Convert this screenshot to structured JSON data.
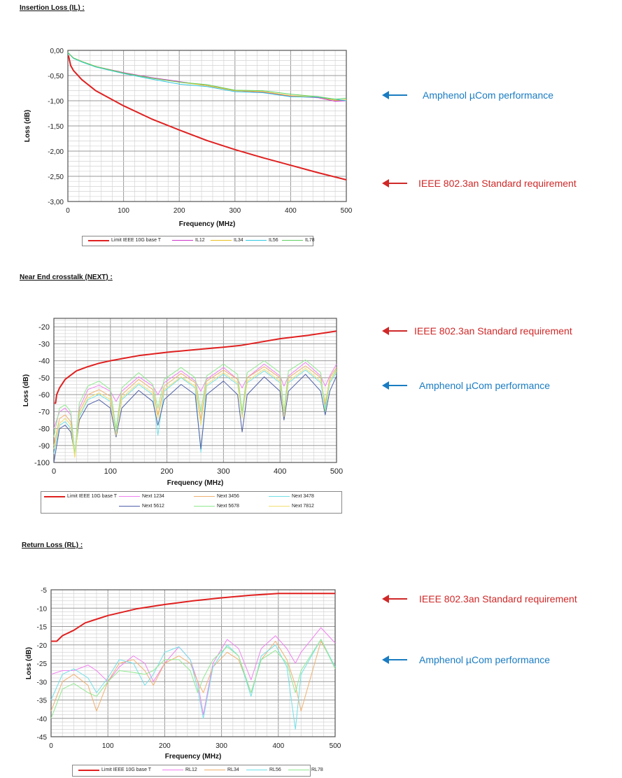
{
  "colors": {
    "limit": "#e02020",
    "blue_text": "#1a7cc2",
    "red_text": "#d02828"
  },
  "sections": [
    {
      "title": "Insertion Loss (IL) :",
      "annotations": [
        {
          "text": "Amphenol µCom performance",
          "color": "#1a7cc2"
        },
        {
          "text": "IEEE 802.3an Standard requirement",
          "color": "#d02828"
        }
      ]
    },
    {
      "title": "Near End crosstalk (NEXT) :",
      "annotations": [
        {
          "text": "IEEE 802.3an Standard requirement",
          "color": "#d02828"
        },
        {
          "text": "Amphenol µCom performance",
          "color": "#1a7cc2"
        }
      ]
    },
    {
      "title": "Return Loss (RL) :",
      "annotations": [
        {
          "text": "IEEE 802.3an Standard requirement",
          "color": "#d02828"
        },
        {
          "text": "Amphenol µCom performance",
          "color": "#1a7cc2"
        }
      ]
    }
  ],
  "chart_data": [
    {
      "type": "line",
      "xlabel": "Frequency (MHz)",
      "ylabel": "Loss (dB)",
      "xlim": [
        0,
        500
      ],
      "ylim": [
        -3,
        0
      ],
      "xticks": [
        "0",
        "100",
        "200",
        "300",
        "400",
        "500"
      ],
      "yticks": [
        "0,00",
        "-0,50",
        "-1,00",
        "-1,50",
        "-2,00",
        "-2,50",
        "-3,00"
      ],
      "grid": true,
      "legend": "bottom",
      "series": [
        {
          "name": "Limit IEEE 10G base T",
          "color": "#e02020",
          "x": [
            1,
            5,
            10,
            25,
            50,
            100,
            150,
            200,
            250,
            300,
            350,
            400,
            450,
            500
          ],
          "y": [
            -0.1,
            -0.3,
            -0.4,
            -0.58,
            -0.8,
            -1.1,
            -1.36,
            -1.58,
            -1.79,
            -1.97,
            -2.13,
            -2.28,
            -2.43,
            -2.57
          ]
        },
        {
          "name": "IL12",
          "color": "#cc33cc",
          "x": [
            0,
            10,
            25,
            50,
            100,
            150,
            200,
            250,
            300,
            350,
            400,
            450,
            480,
            500
          ],
          "y": [
            -0.05,
            -0.15,
            -0.22,
            -0.32,
            -0.44,
            -0.54,
            -0.62,
            -0.7,
            -0.8,
            -0.83,
            -0.91,
            -0.94,
            -1.01,
            -1.0
          ]
        },
        {
          "name": "IL34",
          "color": "#e8c020",
          "x": [
            0,
            10,
            25,
            50,
            100,
            150,
            200,
            250,
            300,
            350,
            400,
            450,
            480,
            500
          ],
          "y": [
            -0.05,
            -0.15,
            -0.22,
            -0.32,
            -0.45,
            -0.55,
            -0.63,
            -0.7,
            -0.8,
            -0.82,
            -0.9,
            -0.93,
            -0.99,
            -0.98
          ]
        },
        {
          "name": "IL56",
          "color": "#30c8e0",
          "x": [
            0,
            10,
            25,
            50,
            100,
            150,
            200,
            250,
            300,
            350,
            400,
            450,
            480,
            500
          ],
          "y": [
            -0.05,
            -0.16,
            -0.23,
            -0.33,
            -0.46,
            -0.57,
            -0.67,
            -0.72,
            -0.82,
            -0.84,
            -0.92,
            -0.93,
            -0.97,
            -1.0
          ]
        },
        {
          "name": "IL78",
          "color": "#60d060",
          "x": [
            0,
            10,
            25,
            50,
            100,
            150,
            200,
            250,
            300,
            350,
            400,
            450,
            480,
            500
          ],
          "y": [
            -0.04,
            -0.15,
            -0.22,
            -0.32,
            -0.45,
            -0.55,
            -0.63,
            -0.68,
            -0.79,
            -0.8,
            -0.87,
            -0.92,
            -0.97,
            -0.95
          ]
        }
      ]
    },
    {
      "type": "line",
      "xlabel": "Frequency (MHz)",
      "ylabel": "Loss (dB)",
      "xlim": [
        0,
        500
      ],
      "ylim": [
        -100,
        -15
      ],
      "xticks": [
        "0",
        "100",
        "200",
        "300",
        "400",
        "500"
      ],
      "yticks": [
        "-20",
        "-30",
        "-40",
        "-50",
        "-60",
        "-70",
        "-80",
        "-90",
        "-100"
      ],
      "grid": true,
      "legend": "bottom",
      "series": [
        {
          "name": "Limit IEEE 10G base T",
          "color": "#e02020",
          "x": [
            1,
            3,
            5,
            10,
            20,
            40,
            60,
            80,
            100,
            150,
            200,
            250,
            300,
            330,
            400,
            450,
            500
          ],
          "y": [
            -65,
            -65,
            -60,
            -56,
            -51,
            -46,
            -43.5,
            -41.5,
            -40,
            -37,
            -35,
            -33.5,
            -32,
            -31,
            -27,
            -25,
            -22.5
          ]
        },
        {
          "name": "Next 1234",
          "color": "#f080f0",
          "x": [
            0,
            10,
            20,
            30,
            37,
            45,
            60,
            80,
            100,
            110,
            120,
            150,
            175,
            184,
            195,
            225,
            250,
            260,
            270,
            300,
            325,
            333,
            342,
            372,
            400,
            407,
            415,
            445,
            472,
            480,
            488,
            500
          ],
          "y": [
            -80,
            -70,
            -68,
            -72,
            -96,
            -68,
            -57,
            -54.5,
            -58,
            -64,
            -58,
            -49.5,
            -55,
            -60,
            -53,
            -46,
            -52,
            -58,
            -51,
            -44,
            -51,
            -56,
            -50,
            -42,
            -49,
            -55,
            -49,
            -41,
            -49,
            -55,
            -49,
            -42
          ]
        },
        {
          "name": "Next 3456",
          "color": "#f0b070",
          "x": [
            0,
            10,
            20,
            30,
            37,
            45,
            60,
            80,
            100,
            110,
            120,
            150,
            175,
            184,
            195,
            225,
            250,
            260,
            270,
            300,
            325,
            333,
            342,
            372,
            400,
            407,
            415,
            445,
            472,
            480,
            488,
            500
          ],
          "y": [
            -90,
            -74,
            -72,
            -76,
            -97,
            -70,
            -60,
            -57,
            -61,
            -83,
            -60,
            -51,
            -57,
            -72,
            -55,
            -47.5,
            -53,
            -75,
            -52,
            -45.5,
            -51,
            -72,
            -50,
            -43.5,
            -50,
            -72,
            -50,
            -43,
            -50,
            -66,
            -50,
            -44
          ]
        },
        {
          "name": "Next 3478",
          "color": "#70e0e8",
          "x": [
            0,
            10,
            20,
            30,
            37,
            45,
            60,
            80,
            100,
            110,
            120,
            150,
            175,
            184,
            195,
            225,
            250,
            260,
            270,
            300,
            325,
            333,
            342,
            372,
            400,
            407,
            415,
            445,
            472,
            480,
            488,
            500
          ],
          "y": [
            -95,
            -78,
            -76,
            -80,
            -96,
            -73,
            -63,
            -60,
            -64,
            -82,
            -63,
            -54,
            -60,
            -84,
            -58,
            -50,
            -56,
            -94,
            -55,
            -48,
            -54,
            -72,
            -53,
            -46,
            -53,
            -72,
            -53,
            -45.5,
            -53,
            -68,
            -53,
            -47
          ]
        },
        {
          "name": "Next 5612",
          "color": "#5060a8",
          "x": [
            0,
            10,
            20,
            30,
            37,
            45,
            60,
            80,
            100,
            110,
            120,
            150,
            175,
            184,
            195,
            225,
            250,
            260,
            270,
            300,
            325,
            333,
            342,
            372,
            400,
            407,
            415,
            445,
            472,
            480,
            488,
            500
          ],
          "y": [
            -100,
            -80,
            -78,
            -82,
            -95,
            -75,
            -66,
            -63,
            -68,
            -85,
            -68,
            -57.5,
            -64,
            -78,
            -63,
            -54,
            -60,
            -92,
            -60,
            -52,
            -60,
            -82,
            -60,
            -49.5,
            -58,
            -75,
            -58,
            -48,
            -58,
            -72,
            -58,
            -49
          ]
        },
        {
          "name": "Next 5678",
          "color": "#90e890",
          "x": [
            0,
            10,
            20,
            30,
            37,
            45,
            60,
            80,
            100,
            110,
            120,
            150,
            175,
            184,
            195,
            225,
            250,
            260,
            270,
            300,
            325,
            333,
            342,
            372,
            400,
            407,
            415,
            445,
            472,
            480,
            488,
            500
          ],
          "y": [
            -85,
            -68,
            -66,
            -70,
            -95,
            -65,
            -55,
            -52,
            -57,
            -80,
            -56,
            -47,
            -54,
            -68,
            -51,
            -44,
            -50,
            -70,
            -49,
            -42,
            -48,
            -70,
            -47,
            -40,
            -47,
            -70,
            -46,
            -39.5,
            -47,
            -70,
            -52,
            -45
          ]
        },
        {
          "name": "Next 7812",
          "color": "#f0e070",
          "x": [
            0,
            10,
            20,
            30,
            37,
            45,
            60,
            80,
            100,
            110,
            120,
            150,
            175,
            184,
            195,
            225,
            250,
            260,
            270,
            300,
            325,
            333,
            342,
            372,
            400,
            407,
            415,
            445,
            472,
            480,
            488,
            500
          ],
          "y": [
            -92,
            -77,
            -74,
            -78,
            -97,
            -72,
            -62,
            -59,
            -63,
            -84,
            -62,
            -53,
            -59,
            -74,
            -57,
            -49.5,
            -55,
            -78,
            -54,
            -47,
            -53,
            -74,
            -52,
            -45,
            -52,
            -73,
            -52,
            -44.5,
            -52,
            -64,
            -52,
            -46
          ]
        }
      ]
    },
    {
      "type": "line",
      "xlabel": "Frequency (MHz)",
      "ylabel": "Loss (dB)",
      "xlim": [
        0,
        500
      ],
      "ylim": [
        -45,
        -5
      ],
      "xticks": [
        "0",
        "100",
        "200",
        "300",
        "400",
        "500"
      ],
      "yticks": [
        "-5",
        "-10",
        "-15",
        "-20",
        "-25",
        "-30",
        "-35",
        "-40",
        "-45"
      ],
      "grid": true,
      "legend": "bottom",
      "series": [
        {
          "name": "Limit IEEE 10G base T",
          "color": "#e02020",
          "x": [
            0,
            10,
            20,
            40,
            60,
            80,
            100,
            150,
            200,
            250,
            300,
            350,
            400,
            500
          ],
          "y": [
            -19,
            -19,
            -17.5,
            -16,
            -14,
            -13,
            -12,
            -10.2,
            -9,
            -8,
            -7.2,
            -6.5,
            -6,
            -6
          ]
        },
        {
          "name": "RL12",
          "color": "#f080f0",
          "x": [
            0,
            20,
            40,
            65,
            80,
            100,
            120,
            145,
            165,
            180,
            200,
            225,
            245,
            258,
            268,
            285,
            310,
            330,
            352,
            370,
            395,
            415,
            430,
            440,
            475,
            500
          ],
          "y": [
            -28,
            -27,
            -27,
            -25.5,
            -27,
            -30,
            -26,
            -23,
            -25,
            -30,
            -25,
            -20.5,
            -24,
            -30,
            -39,
            -25,
            -18.5,
            -21,
            -29.5,
            -21,
            -17.5,
            -21,
            -25,
            -22,
            -15.3,
            -19.5
          ]
        },
        {
          "name": "RL34",
          "color": "#f0b070",
          "x": [
            0,
            20,
            40,
            65,
            80,
            100,
            120,
            145,
            165,
            180,
            200,
            225,
            245,
            258,
            268,
            285,
            310,
            330,
            352,
            370,
            395,
            415,
            430,
            440,
            475,
            500
          ],
          "y": [
            -38,
            -30,
            -28,
            -31,
            -38,
            -30,
            -25,
            -24,
            -27,
            -31,
            -25,
            -23,
            -25,
            -30,
            -33,
            -26,
            -22,
            -24,
            -33,
            -24,
            -19,
            -24,
            -31,
            -38,
            -19,
            -26
          ]
        },
        {
          "name": "RL56",
          "color": "#70e0e8",
          "x": [
            0,
            20,
            40,
            65,
            80,
            100,
            120,
            145,
            165,
            180,
            200,
            225,
            245,
            258,
            268,
            285,
            310,
            330,
            352,
            370,
            395,
            415,
            430,
            440,
            475,
            500
          ],
          "y": [
            -35,
            -28,
            -26.5,
            -29,
            -33,
            -29,
            -24,
            -25,
            -31,
            -28,
            -22,
            -20.5,
            -24,
            -32,
            -40,
            -26,
            -20,
            -23,
            -34,
            -23,
            -20,
            -26,
            -43,
            -28,
            -18.5,
            -26
          ]
        },
        {
          "name": "RL78",
          "color": "#90e890",
          "x": [
            0,
            20,
            40,
            65,
            80,
            100,
            120,
            145,
            165,
            180,
            200,
            225,
            245,
            258,
            268,
            285,
            310,
            330,
            352,
            370,
            395,
            415,
            430,
            440,
            475,
            500
          ],
          "y": [
            -40,
            -32,
            -30.5,
            -33,
            -34,
            -30,
            -27,
            -27.5,
            -28,
            -27,
            -24,
            -24,
            -27,
            -33,
            -29,
            -24,
            -20.5,
            -23,
            -33,
            -24,
            -21.5,
            -25,
            -33,
            -27,
            -18.5,
            -26.5
          ]
        }
      ]
    }
  ]
}
